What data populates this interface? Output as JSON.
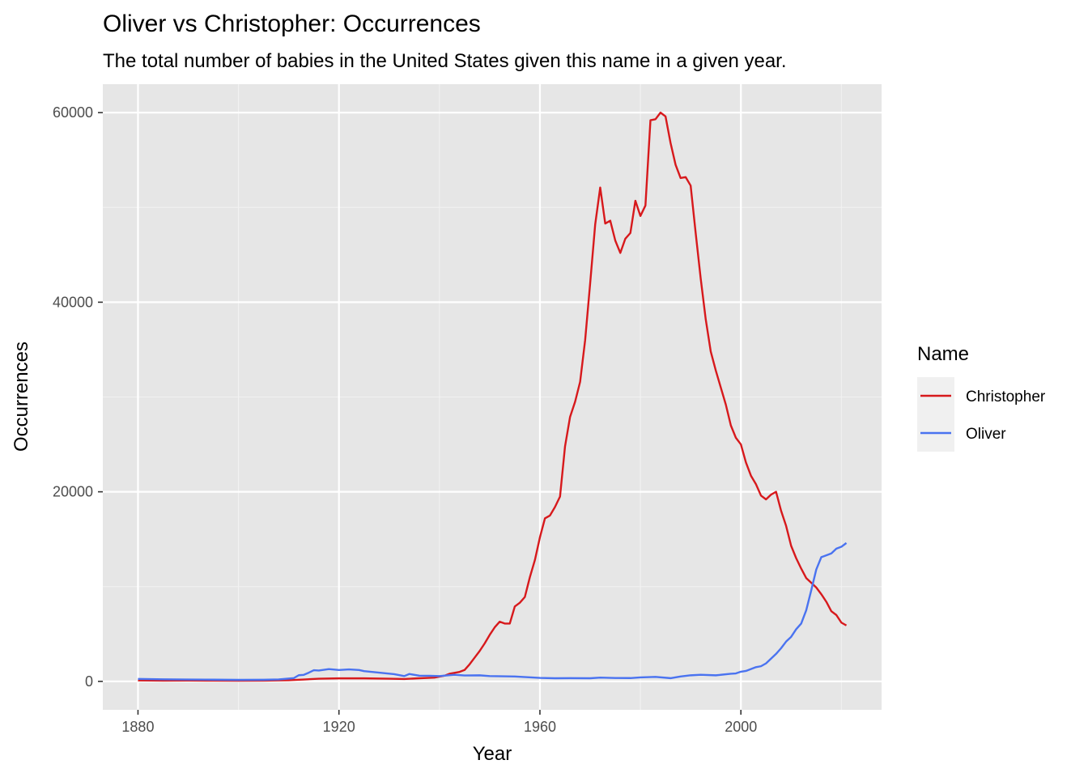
{
  "chart_data": {
    "type": "line",
    "title": "Oliver vs Christopher: Occurrences",
    "subtitle": "The total number of babies in the United States given this name in a given year.",
    "xlabel": "Year",
    "ylabel": "Occurrences",
    "xlim": [
      1873,
      2028
    ],
    "ylim": [
      -3000,
      63000
    ],
    "x_ticks": [
      1880,
      1920,
      1960,
      2000
    ],
    "x_tick_labels": [
      "1880",
      "1920",
      "1960",
      "2000"
    ],
    "y_ticks": [
      0,
      20000,
      40000,
      60000
    ],
    "y_tick_labels": [
      "0",
      "20000",
      "40000",
      "60000"
    ],
    "y_minor_ticks": [
      10000,
      30000,
      50000
    ],
    "x_minor_ticks": [
      1900,
      1940,
      1980,
      2020
    ],
    "grid": true,
    "background": "#e6e6e6",
    "legend": {
      "title": "Name",
      "position": "right",
      "entries": [
        "Christopher",
        "Oliver"
      ]
    },
    "series": [
      {
        "name": "Christopher",
        "color": "#d7191c",
        "points": [
          [
            1880,
            100
          ],
          [
            1885,
            80
          ],
          [
            1890,
            90
          ],
          [
            1895,
            80
          ],
          [
            1900,
            70
          ],
          [
            1905,
            80
          ],
          [
            1910,
            120
          ],
          [
            1913,
            200
          ],
          [
            1916,
            280
          ],
          [
            1920,
            320
          ],
          [
            1925,
            320
          ],
          [
            1930,
            280
          ],
          [
            1933,
            250
          ],
          [
            1936,
            330
          ],
          [
            1939,
            400
          ],
          [
            1941,
            600
          ],
          [
            1942,
            800
          ],
          [
            1944,
            1000
          ],
          [
            1945,
            1200
          ],
          [
            1946,
            1800
          ],
          [
            1947,
            2500
          ],
          [
            1948,
            3200
          ],
          [
            1949,
            4000
          ],
          [
            1950,
            4900
          ],
          [
            1951,
            5700
          ],
          [
            1952,
            6300
          ],
          [
            1953,
            6100
          ],
          [
            1954,
            6100
          ],
          [
            1955,
            7900
          ],
          [
            1956,
            8300
          ],
          [
            1957,
            8900
          ],
          [
            1958,
            11000
          ],
          [
            1959,
            12800
          ],
          [
            1960,
            15200
          ],
          [
            1961,
            17200
          ],
          [
            1962,
            17500
          ],
          [
            1963,
            18400
          ],
          [
            1964,
            19500
          ],
          [
            1965,
            24800
          ],
          [
            1966,
            27900
          ],
          [
            1967,
            29500
          ],
          [
            1968,
            31600
          ],
          [
            1969,
            36000
          ],
          [
            1970,
            42000
          ],
          [
            1971,
            48200
          ],
          [
            1972,
            52100
          ],
          [
            1973,
            48300
          ],
          [
            1974,
            48600
          ],
          [
            1975,
            46500
          ],
          [
            1976,
            45200
          ],
          [
            1977,
            46700
          ],
          [
            1978,
            47300
          ],
          [
            1979,
            50700
          ],
          [
            1980,
            49100
          ],
          [
            1981,
            50200
          ],
          [
            1982,
            59200
          ],
          [
            1983,
            59300
          ],
          [
            1984,
            60000
          ],
          [
            1985,
            59600
          ],
          [
            1986,
            56800
          ],
          [
            1987,
            54500
          ],
          [
            1988,
            53100
          ],
          [
            1989,
            53200
          ],
          [
            1990,
            52300
          ],
          [
            1991,
            47300
          ],
          [
            1992,
            42500
          ],
          [
            1993,
            38200
          ],
          [
            1994,
            34800
          ],
          [
            1995,
            32800
          ],
          [
            1996,
            31000
          ],
          [
            1997,
            29200
          ],
          [
            1998,
            27000
          ],
          [
            1999,
            25700
          ],
          [
            2000,
            25000
          ],
          [
            2001,
            23100
          ],
          [
            2002,
            21700
          ],
          [
            2003,
            20800
          ],
          [
            2004,
            19600
          ],
          [
            2005,
            19200
          ],
          [
            2006,
            19700
          ],
          [
            2007,
            20000
          ],
          [
            2008,
            18000
          ],
          [
            2009,
            16400
          ],
          [
            2010,
            14300
          ],
          [
            2011,
            13000
          ],
          [
            2012,
            11900
          ],
          [
            2013,
            10900
          ],
          [
            2014,
            10400
          ],
          [
            2015,
            9900
          ],
          [
            2016,
            9200
          ],
          [
            2017,
            8400
          ],
          [
            2018,
            7400
          ],
          [
            2019,
            7000
          ],
          [
            2020,
            6200
          ],
          [
            2021,
            5900
          ]
        ]
      },
      {
        "name": "Oliver",
        "color": "#4a73f0",
        "points": [
          [
            1880,
            260
          ],
          [
            1885,
            220
          ],
          [
            1890,
            200
          ],
          [
            1895,
            180
          ],
          [
            1900,
            160
          ],
          [
            1905,
            170
          ],
          [
            1908,
            210
          ],
          [
            1911,
            340
          ],
          [
            1912,
            650
          ],
          [
            1913,
            690
          ],
          [
            1914,
            920
          ],
          [
            1915,
            1180
          ],
          [
            1916,
            1150
          ],
          [
            1918,
            1300
          ],
          [
            1920,
            1200
          ],
          [
            1922,
            1260
          ],
          [
            1924,
            1200
          ],
          [
            1925,
            1080
          ],
          [
            1928,
            920
          ],
          [
            1931,
            760
          ],
          [
            1933,
            560
          ],
          [
            1934,
            780
          ],
          [
            1936,
            600
          ],
          [
            1938,
            590
          ],
          [
            1940,
            560
          ],
          [
            1943,
            700
          ],
          [
            1945,
            620
          ],
          [
            1948,
            640
          ],
          [
            1950,
            560
          ],
          [
            1955,
            520
          ],
          [
            1960,
            370
          ],
          [
            1963,
            330
          ],
          [
            1966,
            340
          ],
          [
            1970,
            330
          ],
          [
            1972,
            400
          ],
          [
            1975,
            360
          ],
          [
            1978,
            350
          ],
          [
            1980,
            420
          ],
          [
            1983,
            470
          ],
          [
            1986,
            340
          ],
          [
            1988,
            520
          ],
          [
            1990,
            640
          ],
          [
            1992,
            700
          ],
          [
            1995,
            640
          ],
          [
            1998,
            800
          ],
          [
            1999,
            840
          ],
          [
            2000,
            1020
          ],
          [
            2001,
            1100
          ],
          [
            2002,
            1300
          ],
          [
            2003,
            1500
          ],
          [
            2004,
            1600
          ],
          [
            2005,
            1900
          ],
          [
            2006,
            2400
          ],
          [
            2007,
            2900
          ],
          [
            2008,
            3500
          ],
          [
            2009,
            4200
          ],
          [
            2010,
            4700
          ],
          [
            2011,
            5500
          ],
          [
            2012,
            6100
          ],
          [
            2013,
            7500
          ],
          [
            2014,
            9600
          ],
          [
            2015,
            11800
          ],
          [
            2016,
            13100
          ],
          [
            2017,
            13300
          ],
          [
            2018,
            13500
          ],
          [
            2019,
            14000
          ],
          [
            2020,
            14200
          ],
          [
            2021,
            14600
          ]
        ]
      }
    ]
  }
}
